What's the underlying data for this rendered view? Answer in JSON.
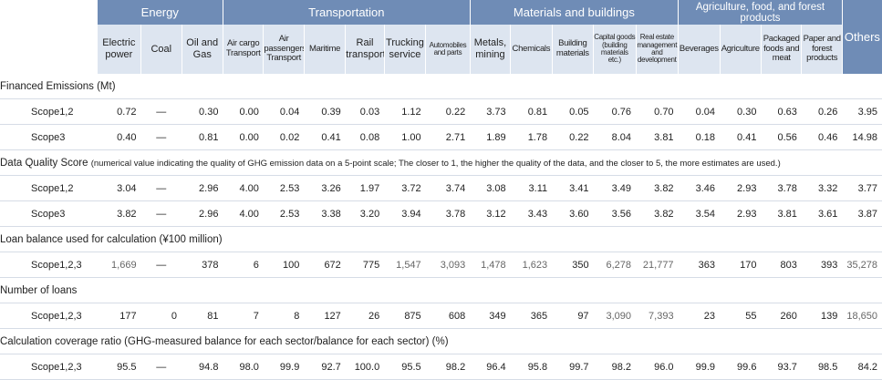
{
  "groups": [
    "Energy",
    "Transportation",
    "Materials and buildings",
    "Agriculture, food, and forest products"
  ],
  "others": "Others",
  "sectors": {
    "electric_power": [
      "Electric",
      "power"
    ],
    "coal": "Coal",
    "oil_gas": [
      "Oil and",
      "Gas"
    ],
    "air_cargo": [
      "Air cargo",
      "Transport"
    ],
    "air_passengers": [
      "Air",
      "passengers",
      "Transport"
    ],
    "maritime": "Maritime",
    "rail": [
      "Rail",
      "transport"
    ],
    "trucking": [
      "Trucking",
      "service"
    ],
    "automobiles": [
      "Automobiles",
      "and parts"
    ],
    "metals": [
      "Metals,",
      "mining"
    ],
    "chemicals": "Chemicals",
    "building": [
      "Building",
      "materials"
    ],
    "capital_goods": [
      "Capital goods",
      "(building",
      "materials",
      "etc.)"
    ],
    "real_estate": [
      "Real estate",
      "management",
      "and",
      "development"
    ],
    "beverages": "Beverages",
    "agriculture": "Agriculture",
    "packaged": [
      "Packaged",
      "foods and",
      "meat"
    ],
    "paper": [
      "Paper and",
      "forest",
      "products"
    ]
  },
  "sections": {
    "financed": "Financed Emissions (Mt)",
    "dq": "Data Quality Score",
    "dq_note": "(numerical value indicating the quality of GHG emission data on a 5-point scale; The closer to 1, the higher the quality of the data, and the closer to 5, the more estimates are used.)",
    "loan": "Loan balance used for calculation (¥100 million)",
    "num": "Number of loans",
    "coverage": "Calculation coverage ratio",
    "coverage_note": "(GHG-measured balance for each sector/balance for each sector) (%)"
  },
  "rows": {
    "fe_s12": {
      "label": "Scope1,2",
      "values": [
        "0.72",
        "—",
        "0.30",
        "0.00",
        "0.04",
        "0.39",
        "0.03",
        "1.12",
        "0.22",
        "3.73",
        "0.81",
        "0.05",
        "0.76",
        "0.70",
        "0.04",
        "0.30",
        "0.63",
        "0.26",
        "3.95"
      ]
    },
    "fe_s3": {
      "label": "Scope3",
      "values": [
        "0.40",
        "—",
        "0.81",
        "0.00",
        "0.02",
        "0.41",
        "0.08",
        "1.00",
        "2.71",
        "1.89",
        "1.78",
        "0.22",
        "8.04",
        "3.81",
        "0.18",
        "0.41",
        "0.56",
        "0.46",
        "14.98"
      ]
    },
    "dq_s12": {
      "label": "Scope1,2",
      "values": [
        "3.04",
        "—",
        "2.96",
        "4.00",
        "2.53",
        "3.26",
        "1.97",
        "3.72",
        "3.74",
        "3.08",
        "3.11",
        "3.41",
        "3.49",
        "3.82",
        "3.46",
        "2.93",
        "3.78",
        "3.32",
        "3.77"
      ]
    },
    "dq_s3": {
      "label": "Scope3",
      "values": [
        "3.82",
        "—",
        "2.96",
        "4.00",
        "2.53",
        "3.38",
        "3.20",
        "3.94",
        "3.78",
        "3.12",
        "3.43",
        "3.60",
        "3.56",
        "3.82",
        "3.54",
        "2.93",
        "3.81",
        "3.61",
        "3.87"
      ]
    },
    "loan": {
      "label": "Scope1,2,3",
      "values": [
        "1,669",
        "—",
        "378",
        "6",
        "100",
        "672",
        "775",
        "1,547",
        "3,093",
        "1,478",
        "1,623",
        "350",
        "6,278",
        "21,777",
        "363",
        "170",
        "803",
        "393",
        "35,278"
      ]
    },
    "num": {
      "label": "Scope1,2,3",
      "values": [
        "177",
        "0",
        "81",
        "7",
        "8",
        "127",
        "26",
        "875",
        "608",
        "349",
        "365",
        "97",
        "3,090",
        "7,393",
        "23",
        "55",
        "260",
        "139",
        "18,650"
      ]
    },
    "cov": {
      "label": "Scope1,2,3",
      "values": [
        "95.5",
        "—",
        "94.8",
        "98.0",
        "99.9",
        "92.7",
        "100.0",
        "95.5",
        "98.2",
        "96.4",
        "95.8",
        "99.7",
        "98.2",
        "96.0",
        "99.9",
        "99.6",
        "93.7",
        "98.5",
        "84.2"
      ]
    }
  }
}
